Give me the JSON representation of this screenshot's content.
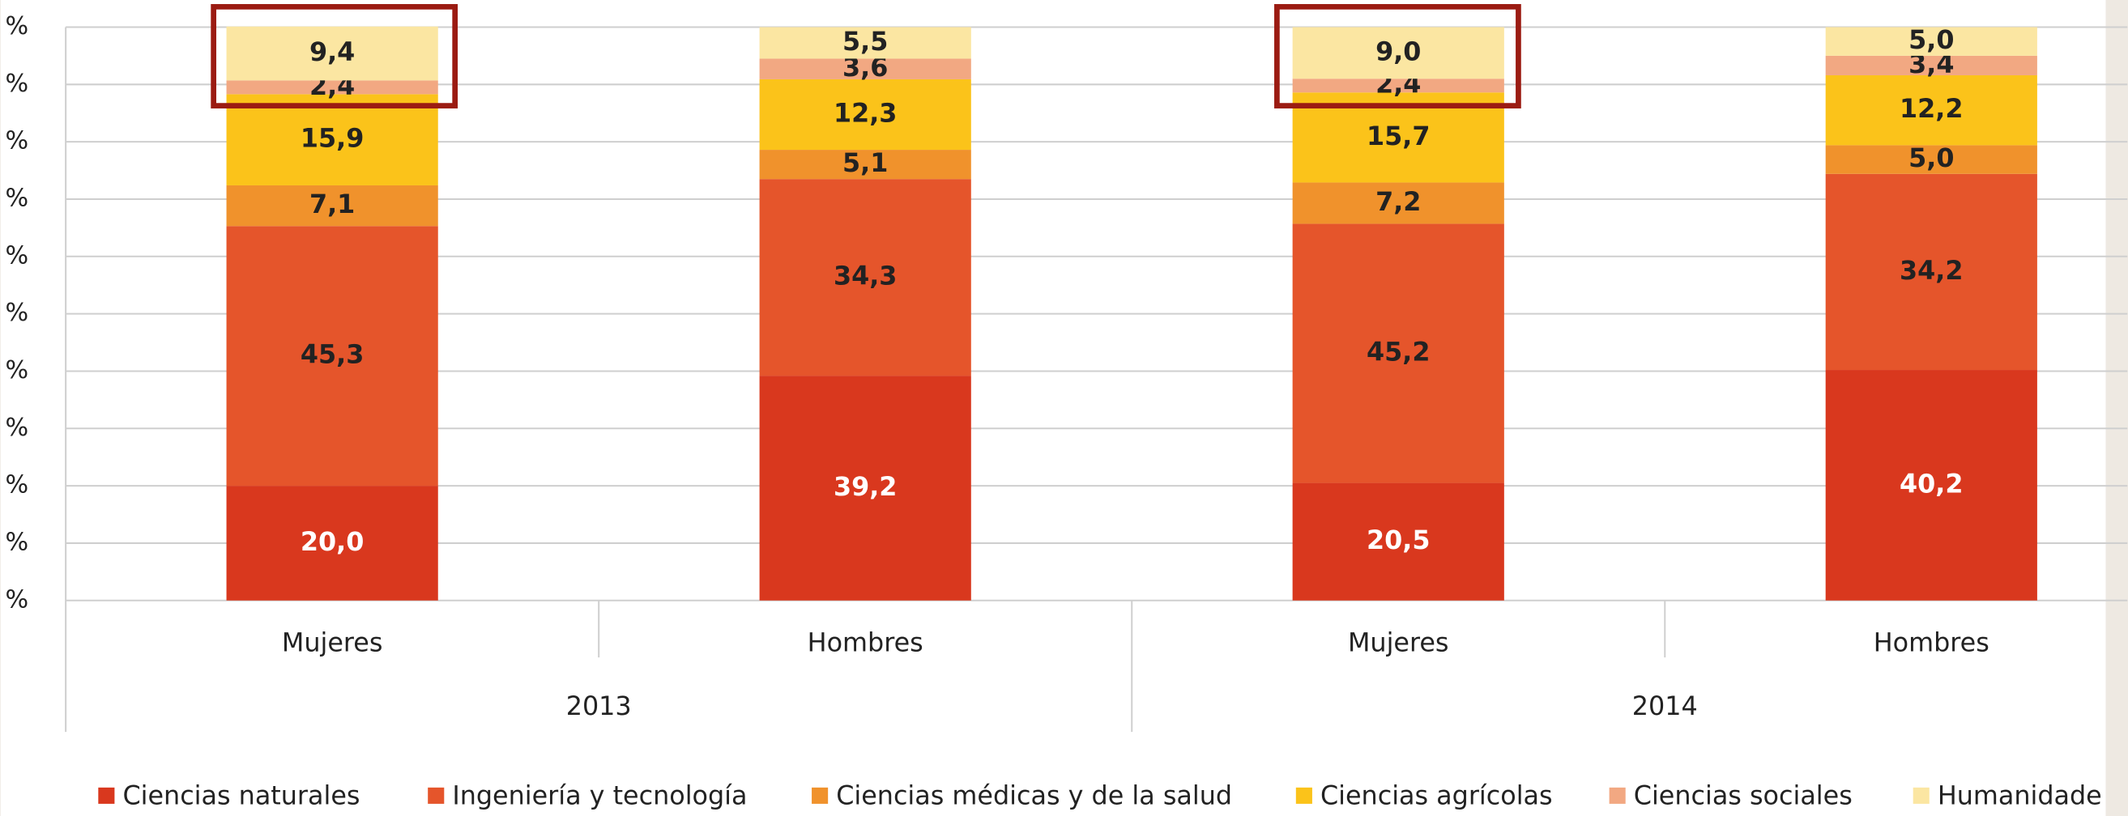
{
  "chart_data": {
    "type": "stacked_bar",
    "categories": [
      "Mujeres",
      "Hombres",
      "Mujeres",
      "Hombres"
    ],
    "groups": [
      "2013",
      "2014"
    ],
    "series": [
      {
        "name": "Ciencias naturales",
        "color": "#d9381e",
        "values": [
          20.0,
          39.2,
          20.5,
          40.2
        ],
        "value_labels": [
          "20,0",
          "39,2",
          "20,5",
          "40,2"
        ]
      },
      {
        "name": "Ingeniería y tecnología",
        "color": "#e5552b",
        "values": [
          45.3,
          34.3,
          45.2,
          34.2
        ],
        "value_labels": [
          "45,3",
          "34,3",
          "45,2",
          "34,2"
        ]
      },
      {
        "name": "Ciencias médicas y de la salud",
        "color": "#f0922c",
        "values": [
          7.1,
          5.1,
          7.2,
          5.0
        ],
        "value_labels": [
          "7,1",
          "5,1",
          "7,2",
          "5,0"
        ]
      },
      {
        "name": "Ciencias agrícolas",
        "color": "#fbc31a",
        "values": [
          15.9,
          12.3,
          15.7,
          12.2
        ],
        "value_labels": [
          "15,9",
          "12,3",
          "15,7",
          "12,2"
        ]
      },
      {
        "name": "Ciencias sociales",
        "color": "#f2a882",
        "values": [
          2.4,
          3.6,
          2.4,
          3.4
        ],
        "value_labels": [
          "2,4",
          "3,6",
          "2,4",
          "3,4"
        ]
      },
      {
        "name": "Humanidade",
        "color": "#fbe6a2",
        "values": [
          9.4,
          5.5,
          9.0,
          5.0
        ],
        "value_labels": [
          "9,4",
          "5,5",
          "9,0",
          "5,0"
        ]
      }
    ],
    "ylim": [
      0,
      100
    ],
    "yticks": [
      {
        "value": 0,
        "label": "%"
      },
      {
        "value": 10,
        "label": "%"
      },
      {
        "value": 20,
        "label": "%"
      },
      {
        "value": 30,
        "label": "%"
      },
      {
        "value": 40,
        "label": "%"
      },
      {
        "value": 50,
        "label": "%"
      },
      {
        "value": 60,
        "label": "%"
      },
      {
        "value": 70,
        "label": "%"
      },
      {
        "value": 80,
        "label": "%"
      },
      {
        "value": 90,
        "label": "%"
      },
      {
        "value": 100,
        "label": "%"
      }
    ],
    "grid": true
  }
}
